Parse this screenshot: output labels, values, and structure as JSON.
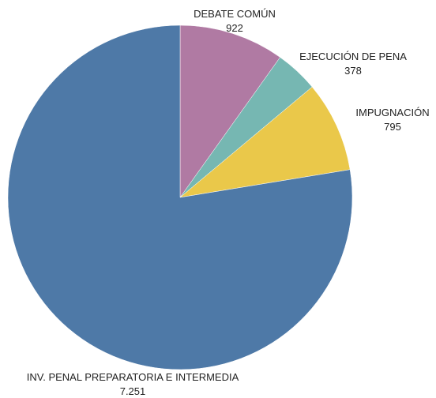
{
  "chart_data": {
    "type": "pie",
    "title": "",
    "series": [
      {
        "name": "DEBATE COMÚN",
        "value": 922,
        "value_label": "922",
        "color": "#b07aa3"
      },
      {
        "name": "EJECUCIÓN DE PENA",
        "value": 378,
        "value_label": "378",
        "color": "#76b7b2"
      },
      {
        "name": "IMPUGNACIÓN",
        "value": 795,
        "value_label": "795",
        "color": "#eac84a"
      },
      {
        "name": "INV. PENAL PREPARATORIA E INTERMEDIA",
        "value": 7251,
        "value_label": "7.251",
        "color": "#4e79a7"
      }
    ],
    "start_angle_deg": 0,
    "direction": "clockwise",
    "legend": "none",
    "labels": "outside, category name with value"
  }
}
